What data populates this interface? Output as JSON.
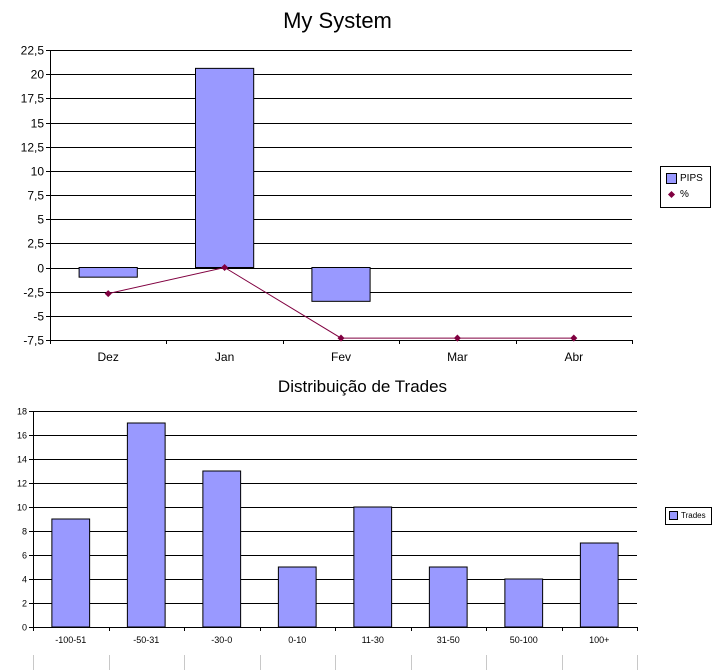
{
  "charts": {
    "top": {
      "title": "My System",
      "legend": [
        "PIPS",
        "%"
      ]
    },
    "bottom": {
      "title": "Distribuição de Trades",
      "legend": [
        "Trades"
      ]
    }
  },
  "colors": {
    "bar_fill": "#9999ff",
    "line_series": "#800040",
    "grid": "#000000"
  },
  "chart_data": [
    {
      "type": "bar",
      "title": "My System",
      "categories": [
        "Dez",
        "Jan",
        "Fev",
        "Mar",
        "Abr"
      ],
      "series": [
        {
          "name": "PIPS",
          "type": "bar",
          "values": [
            -1,
            20.6,
            -3.5,
            null,
            null
          ]
        },
        {
          "name": "%",
          "type": "line",
          "values": [
            -2.7,
            0,
            -7.3,
            -7.3,
            -7.3
          ]
        }
      ],
      "yticks": [
        "22,5",
        "20",
        "17,5",
        "15",
        "12,5",
        "10",
        "7,5",
        "5",
        "2,5",
        "0",
        "-2,5",
        "-5",
        "-7,5"
      ],
      "ylim": [
        -7.5,
        22.5
      ],
      "grid": true,
      "legend_position": "right"
    },
    {
      "type": "bar",
      "title": "Distribuição de Trades",
      "categories": [
        "-100-51",
        "-50-31",
        "-30-0",
        "0-10",
        "11-30",
        "31-50",
        "50-100",
        "100+"
      ],
      "series": [
        {
          "name": "Trades",
          "values": [
            9,
            17,
            13,
            5,
            10,
            5,
            4,
            7
          ]
        }
      ],
      "yticks": [
        "18",
        "16",
        "14",
        "12",
        "10",
        "8",
        "6",
        "4",
        "2",
        "0"
      ],
      "ylim": [
        0,
        18
      ],
      "grid": true,
      "legend_position": "right"
    }
  ]
}
